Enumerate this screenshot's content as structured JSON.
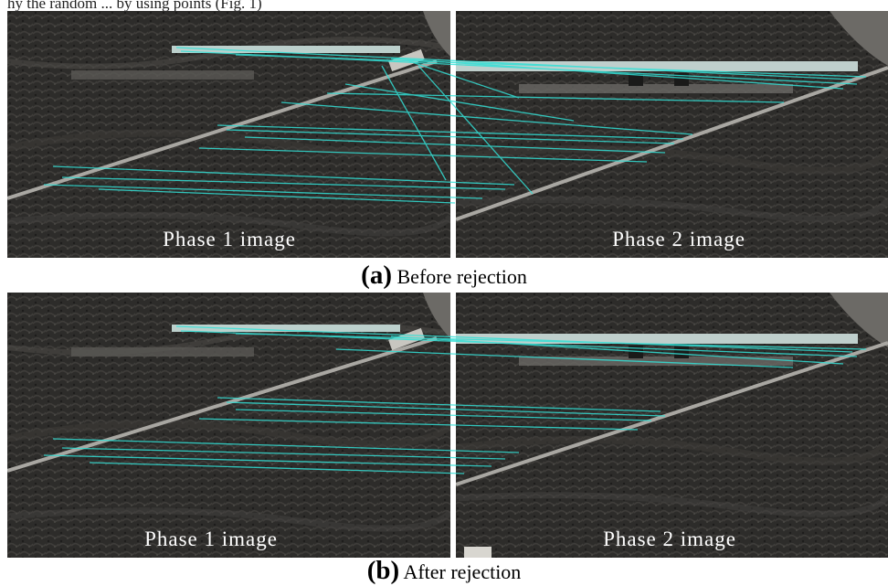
{
  "header_snippet": "hy the random ... by using points (Fig. 1)",
  "panels": [
    {
      "caption_letter": "(a)",
      "caption_text": "Before rejection",
      "left_label": "Phase 1 image",
      "right_label": "Phase 2 image"
    },
    {
      "caption_letter": "(b)",
      "caption_text": "After rejection",
      "left_label": "Phase 1 image",
      "right_label": "Phase 2 image"
    }
  ],
  "colors": {
    "terrain": "#2c2b29",
    "match_line": "#33e0d6",
    "road": "#a9a7a2",
    "divider": "#ffffff"
  }
}
